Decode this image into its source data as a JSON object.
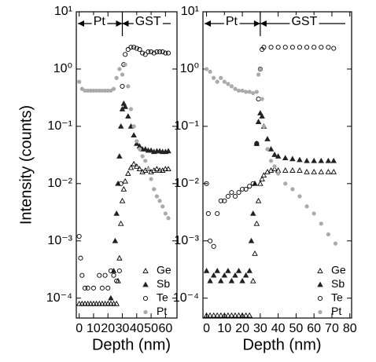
{
  "chart_data": [
    {
      "type": "scatter",
      "ylabel": "Intensity (counts)",
      "xlabel": "Depth  (nm)",
      "log_y": true,
      "legend": "lower right",
      "annotations": [
        "Pt",
        "GST"
      ],
      "xlim": [
        -2,
        68
      ],
      "xticks": [
        0,
        10,
        20,
        30,
        40,
        50,
        60
      ],
      "ylim": [
        4.5e-05,
        10
      ],
      "yticks": [
        {
          "value": 10,
          "label": "10¹"
        },
        {
          "value": 1,
          "label": "10⁰"
        },
        {
          "value": 0.1,
          "label": "10⁻¹"
        },
        {
          "value": 0.01,
          "label": "10⁻²"
        },
        {
          "value": 0.001,
          "label": "10⁻³"
        },
        {
          "value": 0.0001,
          "label": "10⁻⁴"
        }
      ],
      "series": [
        {
          "name": "Ge",
          "marker": "open-triangle",
          "color": "#000000",
          "x": [
            0,
            2,
            4,
            6,
            8,
            10,
            12,
            14,
            16,
            18,
            20,
            22,
            24,
            26,
            27,
            28,
            29,
            30,
            31,
            32,
            34,
            36,
            38,
            40,
            42,
            44,
            46,
            48,
            50,
            52,
            54,
            56,
            58,
            60,
            62
          ],
          "values": [
            8e-05,
            8e-05,
            8e-05,
            8e-05,
            8e-05,
            8e-05,
            8e-05,
            8e-05,
            8e-05,
            8e-05,
            8e-05,
            8e-05,
            8e-05,
            8e-05,
            0.0002,
            0.0005,
            0.002,
            0.005,
            0.008,
            0.011,
            0.015,
            0.019,
            0.022,
            0.02,
            0.018,
            0.016,
            0.017,
            0.018,
            0.016,
            0.017,
            0.018,
            0.017,
            0.017,
            0.018,
            0.018
          ]
        },
        {
          "name": "Sb",
          "marker": "filled-triangle",
          "color": "#222222",
          "x": [
            22,
            24,
            25,
            26,
            27,
            28,
            29,
            30,
            31,
            32,
            34,
            36,
            38,
            40,
            42,
            44,
            46,
            48,
            50,
            52,
            54,
            56,
            58,
            60,
            62
          ],
          "values": [
            0.0001,
            0.0003,
            0.001,
            0.003,
            0.01,
            0.03,
            0.1,
            0.2,
            0.25,
            0.22,
            0.15,
            0.1,
            0.07,
            0.05,
            0.045,
            0.04,
            0.04,
            0.038,
            0.038,
            0.036,
            0.037,
            0.037,
            0.036,
            0.036,
            0.037
          ]
        },
        {
          "name": "Te",
          "marker": "open-circle",
          "color": "#000000",
          "x": [
            0,
            1,
            2,
            4,
            6,
            10,
            14,
            16,
            18,
            20,
            22,
            24,
            26,
            28,
            29,
            30,
            31,
            32,
            34,
            36,
            38,
            40,
            42,
            44,
            46,
            48,
            50,
            52,
            54,
            56,
            58,
            60,
            62
          ],
          "values": [
            0.0012,
            0.0005,
            0.00025,
            0.00015,
            0.00015,
            0.00015,
            0.00025,
            0.00015,
            0.00025,
            0.00015,
            0.0003,
            0.00025,
            0.0002,
            0.0003,
            0.01,
            0.5,
            1.2,
            1.8,
            2.2,
            2.4,
            2.4,
            2.3,
            2.2,
            1.9,
            1.8,
            2.0,
            2.0,
            1.9,
            2.0,
            2.0,
            2.0,
            1.9,
            1.9
          ]
        },
        {
          "name": "Pt",
          "marker": "filled-circle",
          "color": "#aaaaaa",
          "x": [
            0,
            2,
            4,
            6,
            8,
            10,
            12,
            14,
            16,
            18,
            20,
            22,
            24,
            26,
            28,
            30,
            32,
            34,
            36,
            38,
            40,
            42,
            44,
            46,
            48,
            50,
            52,
            54,
            56,
            58,
            60,
            62
          ],
          "values": [
            0.6,
            0.45,
            0.42,
            0.42,
            0.42,
            0.42,
            0.42,
            0.42,
            0.42,
            0.42,
            0.42,
            0.42,
            0.45,
            0.7,
            1.0,
            0.8,
            1.2,
            0.5,
            0.2,
            0.1,
            0.055,
            0.04,
            0.03,
            0.025,
            0.018,
            0.012,
            0.008,
            0.006,
            0.005,
            0.004,
            0.003,
            0.0025
          ]
        }
      ]
    },
    {
      "type": "scatter",
      "xlabel": "Depth  (nm)",
      "log_y": true,
      "legend": "lower right",
      "annotations": [
        "Pt",
        "GST"
      ],
      "xlim": [
        -2,
        81
      ],
      "xticks": [
        0,
        10,
        20,
        30,
        40,
        50,
        60,
        70,
        80
      ],
      "ylim": [
        4.5e-05,
        10
      ],
      "yticks": [
        {
          "value": 10,
          "label": "10¹"
        },
        {
          "value": 1,
          "label": "10⁰"
        },
        {
          "value": 0.1,
          "label": "10⁻¹"
        },
        {
          "value": 0.01,
          "label": "10⁻²"
        },
        {
          "value": 0.001,
          "label": "10⁻³"
        },
        {
          "value": 0.0001,
          "label": "10⁻⁴"
        }
      ],
      "series": [
        {
          "name": "Ge",
          "marker": "open-triangle",
          "color": "#000000",
          "x": [
            0,
            2,
            4,
            6,
            8,
            10,
            12,
            14,
            16,
            18,
            20,
            22,
            24,
            26,
            27,
            28,
            29,
            30,
            31,
            32,
            34,
            36,
            38,
            40,
            44,
            48,
            52,
            56,
            60,
            64,
            68,
            71
          ],
          "values": [
            5e-05,
            5e-05,
            5e-05,
            5e-05,
            5e-05,
            5e-05,
            5e-05,
            5e-05,
            5e-05,
            5e-05,
            5e-05,
            5e-05,
            5e-05,
            0.0002,
            0.0006,
            0.002,
            0.005,
            0.01,
            0.012,
            0.014,
            0.016,
            0.017,
            0.018,
            0.017,
            0.017,
            0.017,
            0.017,
            0.016,
            0.016,
            0.016,
            0.016,
            0.016
          ]
        },
        {
          "name": "Sb",
          "marker": "filled-triangle",
          "color": "#222222",
          "x": [
            0,
            2,
            4,
            6,
            8,
            10,
            12,
            14,
            16,
            18,
            20,
            22,
            24,
            25,
            26,
            27,
            28,
            29,
            30,
            31,
            32,
            34,
            36,
            38,
            40,
            44,
            48,
            52,
            56,
            60,
            64,
            68,
            71
          ],
          "values": [
            0.0003,
            0.0002,
            0.00025,
            0.0003,
            0.0002,
            0.00025,
            0.0003,
            0.0002,
            0.00025,
            0.0003,
            0.0002,
            0.00025,
            0.0003,
            0.001,
            0.003,
            0.01,
            0.05,
            0.12,
            0.17,
            0.15,
            0.1,
            0.06,
            0.04,
            0.032,
            0.03,
            0.028,
            0.027,
            0.026,
            0.025,
            0.025,
            0.025,
            0.025,
            0.025
          ]
        },
        {
          "name": "Te",
          "marker": "open-circle",
          "color": "#000000",
          "x": [
            0,
            1,
            2,
            4,
            6,
            8,
            10,
            12,
            14,
            16,
            18,
            20,
            22,
            24,
            26,
            28,
            29,
            30,
            31,
            32,
            36,
            40,
            44,
            48,
            52,
            56,
            60,
            64,
            68,
            71
          ],
          "values": [
            0.01,
            0.003,
            0.001,
            0.0008,
            0.003,
            0.005,
            0.005,
            0.006,
            0.007,
            0.006,
            0.007,
            0.008,
            0.008,
            0.009,
            0.01,
            0.05,
            0.3,
            1.0,
            2.2,
            2.4,
            2.4,
            2.4,
            2.4,
            2.4,
            2.4,
            2.4,
            2.4,
            2.4,
            2.4,
            2.3
          ]
        },
        {
          "name": "Pt",
          "marker": "filled-circle",
          "color": "#aaaaaa",
          "x": [
            0,
            2,
            4,
            6,
            8,
            10,
            12,
            14,
            16,
            18,
            20,
            22,
            24,
            26,
            28,
            29,
            30,
            31,
            32,
            34,
            36,
            38,
            40,
            44,
            48,
            52,
            56,
            60,
            64,
            68,
            72
          ],
          "values": [
            1.0,
            0.9,
            0.7,
            0.6,
            0.7,
            0.6,
            0.55,
            0.5,
            0.45,
            0.42,
            0.42,
            0.4,
            0.4,
            0.38,
            0.4,
            0.8,
            1.0,
            0.3,
            0.1,
            0.04,
            0.025,
            0.02,
            0.015,
            0.01,
            0.008,
            0.006,
            0.004,
            0.003,
            0.002,
            0.0013,
            0.0009
          ]
        }
      ]
    }
  ]
}
